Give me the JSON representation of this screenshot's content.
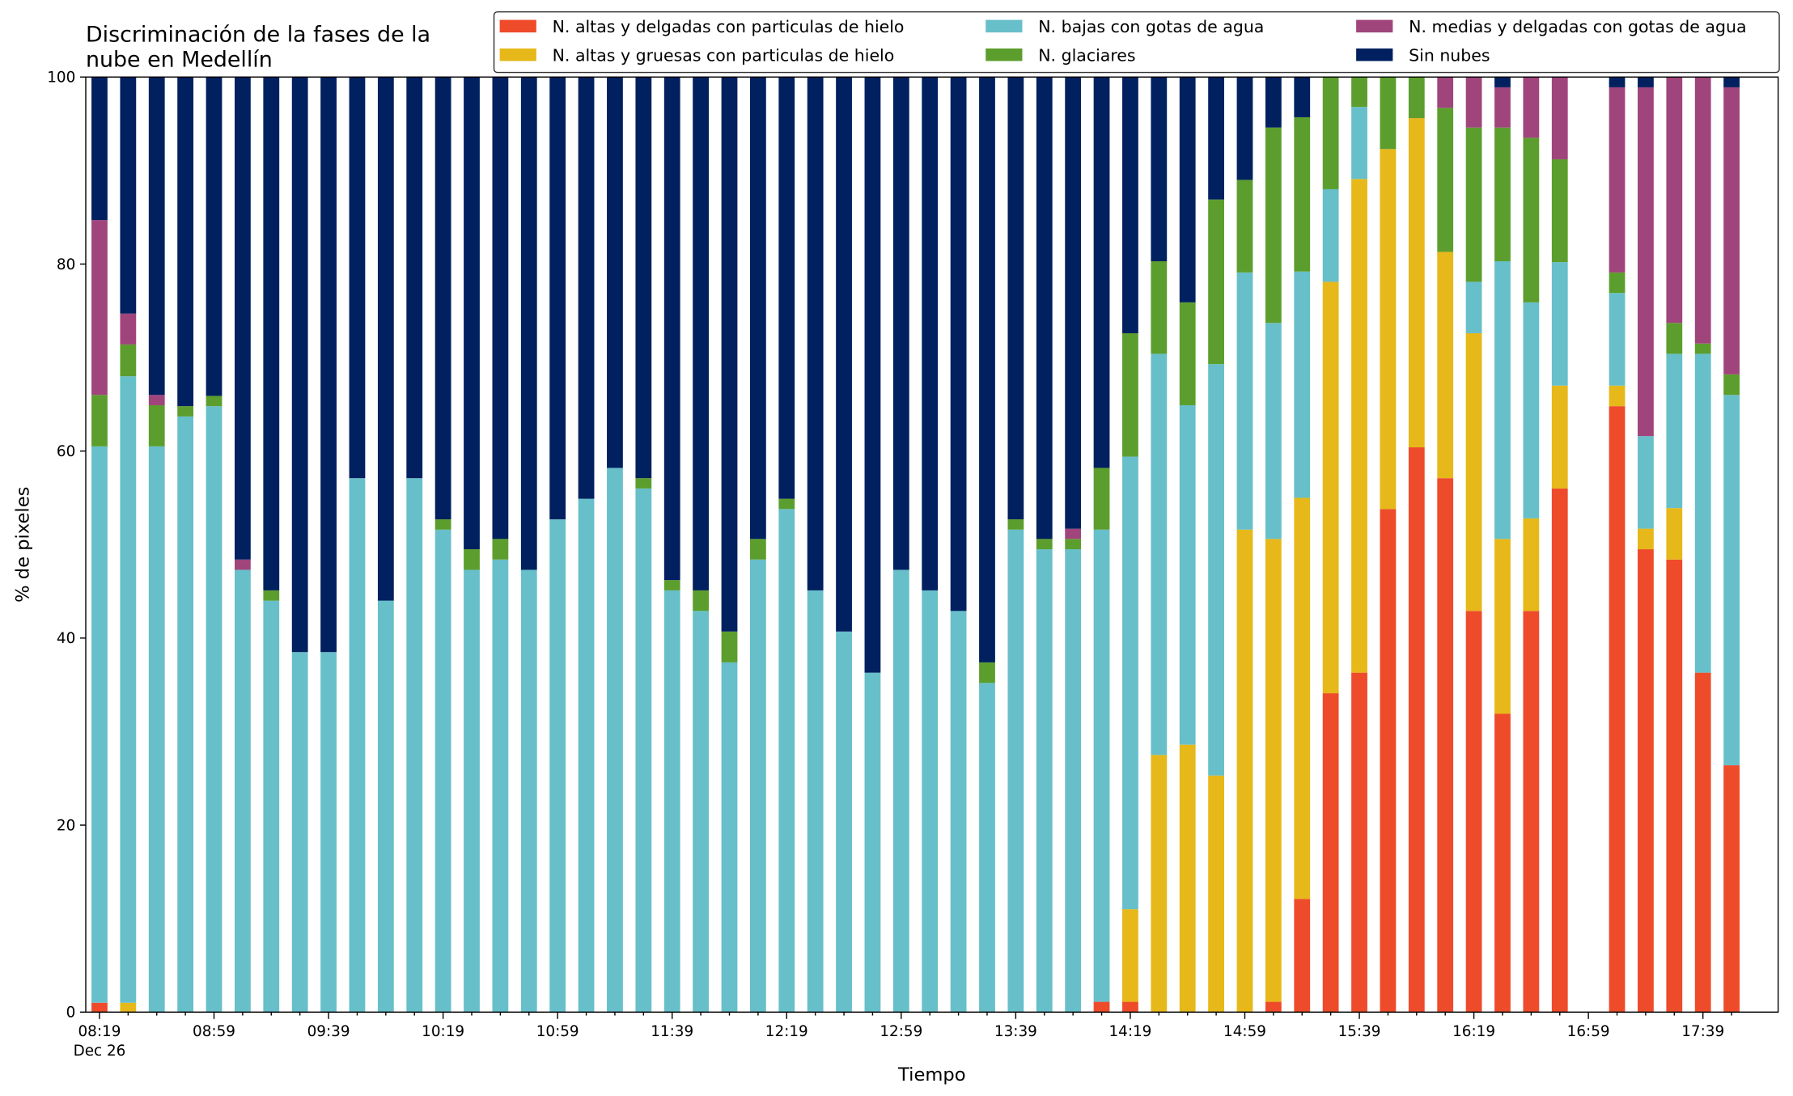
{
  "chart_data": {
    "type": "stacked_bar",
    "title": [
      "Discriminación de la fases de la",
      "nube en Medellín"
    ],
    "xlabel": "Tiempo",
    "ylabel": "% de pixeles",
    "x_sublabel": "Dec 26",
    "categories": [
      "08:19",
      null,
      null,
      null,
      "08:59",
      null,
      null,
      null,
      "09:39",
      null,
      null,
      null,
      "10:19",
      null,
      null,
      null,
      "10:59",
      null,
      null,
      null,
      "11:39",
      null,
      null,
      null,
      "12:19",
      null,
      null,
      null,
      "12:59",
      null,
      null,
      null,
      "13:39",
      null,
      null,
      null,
      "14:19",
      null,
      null,
      null,
      "14:59",
      null,
      null,
      null,
      "15:39",
      null,
      null,
      null,
      "16:19",
      null,
      null,
      null,
      "16:59",
      null,
      null,
      null,
      "17:39",
      null
    ],
    "ylim": [
      0,
      100
    ],
    "yticks": [
      0,
      20,
      40,
      60,
      80,
      100
    ],
    "grid": false,
    "legend": "top",
    "series": [
      {
        "name": "N. altas y delgadas con particulas de hielo",
        "color": "#ee4b2b",
        "values": [
          1,
          0,
          0,
          0,
          0,
          0,
          0,
          0,
          0,
          0,
          0,
          0,
          0,
          0,
          0,
          0,
          0,
          0,
          0,
          0,
          0,
          0,
          0,
          0,
          0,
          0,
          0,
          0,
          0,
          0,
          0,
          0,
          0,
          0,
          0,
          1.1,
          1.1,
          0,
          0,
          0,
          0,
          1.1,
          12.1,
          34.1,
          36.3,
          53.8,
          60.4,
          57.1,
          42.9,
          31.9,
          42.9,
          56,
          null,
          64.8,
          49.5,
          48.4,
          36.3,
          26.4
        ]
      },
      {
        "name": "N. altas y gruesas con particulas de hielo",
        "color": "#e6b819",
        "values": [
          0,
          1,
          0,
          0,
          0,
          0,
          0,
          0,
          0,
          0,
          0,
          0,
          0,
          0,
          0,
          0,
          0,
          0,
          0,
          0,
          0,
          0,
          0,
          0,
          0,
          0,
          0,
          0,
          0,
          0,
          0,
          0,
          0,
          0,
          0,
          0,
          9.9,
          27.5,
          28.6,
          25.3,
          51.6,
          49.5,
          42.9,
          44,
          52.8,
          38.5,
          35.2,
          24.2,
          29.7,
          18.7,
          9.9,
          11,
          null,
          2.2,
          2.2,
          5.5,
          0,
          0
        ]
      },
      {
        "name": "N. bajas con gotas de agua",
        "color": "#67bfca",
        "values": [
          59.5,
          67,
          60.5,
          63.7,
          64.8,
          47.3,
          44,
          38.5,
          38.5,
          57.1,
          44,
          57.1,
          51.6,
          47.3,
          48.4,
          47.3,
          52.7,
          54.9,
          58.2,
          56,
          45.1,
          42.9,
          37.4,
          48.4,
          53.8,
          45.1,
          40.7,
          36.3,
          47.3,
          45.1,
          42.9,
          35.2,
          51.6,
          49.5,
          49.5,
          50.5,
          48.4,
          42.9,
          36.3,
          44,
          27.5,
          23.1,
          24.2,
          9.9,
          7.7,
          0,
          0,
          0,
          5.5,
          29.7,
          23.1,
          13.2,
          null,
          9.9,
          9.9,
          16.5,
          34.1,
          39.6
        ]
      },
      {
        "name": "N. glaciares",
        "color": "#5c9e2d",
        "values": [
          5.5,
          3.4,
          4.4,
          1.1,
          1.1,
          0,
          1.1,
          0,
          0,
          0,
          0,
          0,
          1.1,
          2.2,
          2.2,
          0,
          0,
          0,
          0,
          1.1,
          1.1,
          2.2,
          3.3,
          2.2,
          1.1,
          0,
          0,
          0,
          0,
          0,
          0,
          2.2,
          1.1,
          1.1,
          1.1,
          6.6,
          13.2,
          9.9,
          11,
          17.6,
          9.9,
          20.9,
          16.5,
          12,
          3.2,
          7.7,
          4.4,
          15.4,
          16.5,
          14.3,
          17.6,
          11,
          null,
          2.2,
          0,
          3.3,
          1.1,
          2.2
        ]
      },
      {
        "name": "N. medias y delgadas con gotas de agua",
        "color": "#a0457b",
        "values": [
          18.7,
          3.3,
          1.1,
          0,
          0,
          1.1,
          0,
          0,
          0,
          0,
          0,
          0,
          0,
          0,
          0,
          0,
          0,
          0,
          0,
          0,
          0,
          0,
          0,
          0,
          0,
          0,
          0,
          0,
          0,
          0,
          0,
          0,
          0,
          0,
          1.1,
          0,
          0,
          0,
          0,
          0,
          0,
          0,
          0,
          0,
          0,
          0,
          0,
          3.3,
          5.4,
          4.3,
          6.5,
          8.8,
          null,
          19.8,
          37.3,
          26.3,
          28.5,
          30.7
        ]
      },
      {
        "name": "Sin nubes",
        "color": "#00205f",
        "values": [
          15.3,
          25.3,
          34,
          35.2,
          34.1,
          51.6,
          54.9,
          61.5,
          61.5,
          42.9,
          56,
          42.9,
          47.3,
          50.5,
          49.4,
          52.7,
          47.3,
          45.1,
          41.8,
          42.9,
          53.8,
          54.9,
          59.3,
          49.4,
          45.1,
          54.9,
          59.3,
          63.7,
          52.7,
          54.9,
          57.1,
          62.6,
          47.3,
          49.4,
          48.3,
          41.8,
          27.4,
          19.7,
          24.1,
          13.1,
          11,
          5.4,
          4.3,
          0,
          0,
          0,
          0,
          0,
          0,
          1.1,
          0,
          0,
          null,
          1.1,
          1.1,
          0,
          0,
          1.1
        ]
      }
    ]
  }
}
